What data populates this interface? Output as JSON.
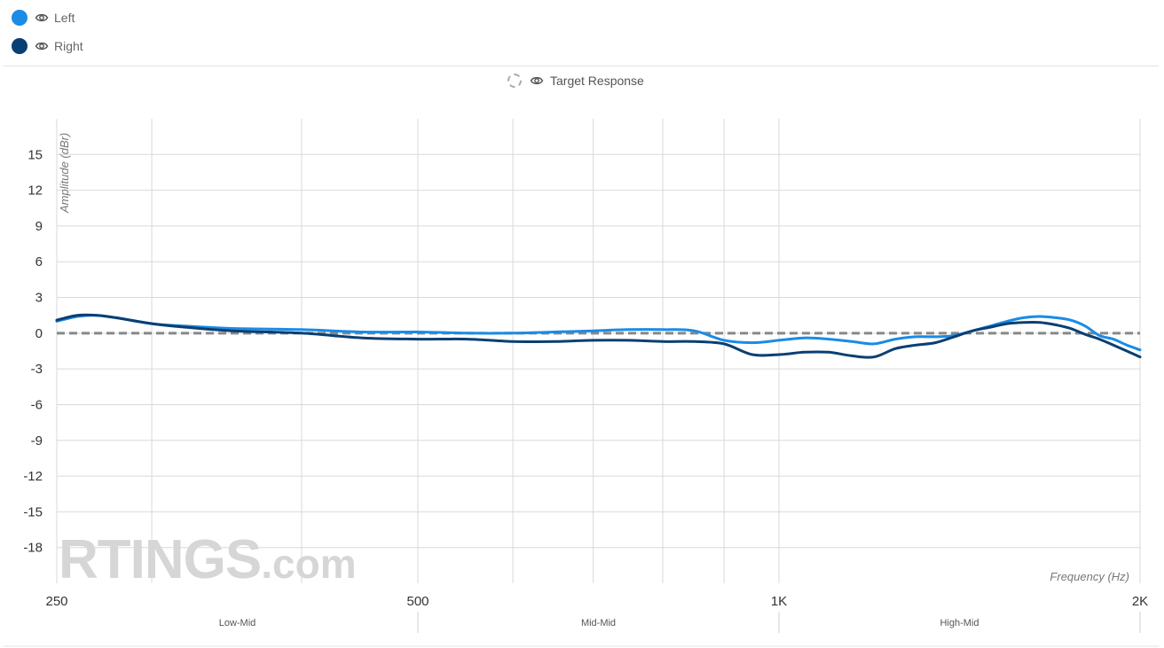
{
  "legend": {
    "items": [
      {
        "label": "Left",
        "color": "#1a8be6",
        "icon": "eye-icon"
      },
      {
        "label": "Right",
        "color": "#0a3f73",
        "icon": "eye-icon"
      }
    ],
    "target": {
      "label": "Target Response",
      "icon": "eye-icon"
    }
  },
  "watermark": {
    "brand": "RTINGS",
    "suffix": ".com"
  },
  "chart_data": {
    "type": "line",
    "xlabel": "Frequency (Hz)",
    "ylabel": "Amplitude (dBr)",
    "x_scale": "log",
    "xlim": [
      250,
      2000
    ],
    "ylim": [
      -21,
      18
    ],
    "x_ticks": [
      {
        "value": 250,
        "label": "250"
      },
      {
        "value": 500,
        "label": "500"
      },
      {
        "value": 1000,
        "label": "1K"
      },
      {
        "value": 2000,
        "label": "2K"
      }
    ],
    "x_minor": [
      300,
      400,
      600,
      700,
      800,
      900
    ],
    "y_ticks": [
      15,
      12,
      9,
      6,
      3,
      0,
      -3,
      -6,
      -9,
      -12,
      -15,
      -18
    ],
    "grid": true,
    "bands": [
      {
        "label": "Low-Mid",
        "from": 250,
        "to": 500
      },
      {
        "label": "Mid-Mid",
        "from": 500,
        "to": 1000
      },
      {
        "label": "High-Mid",
        "from": 1000,
        "to": 2000
      }
    ],
    "target": {
      "name": "Target Response",
      "value": 0,
      "color": "#888888"
    },
    "series": [
      {
        "name": "Left",
        "color": "#1a8be6",
        "x": [
          250,
          260,
          270,
          280,
          300,
          320,
          350,
          400,
          450,
          500,
          550,
          600,
          650,
          700,
          750,
          800,
          850,
          900,
          950,
          1000,
          1050,
          1100,
          1150,
          1200,
          1250,
          1300,
          1350,
          1400,
          1450,
          1500,
          1550,
          1600,
          1650,
          1700,
          1750,
          1800,
          1850,
          1900,
          1950,
          2000
        ],
        "y": [
          1.0,
          1.4,
          1.5,
          1.3,
          0.8,
          0.6,
          0.4,
          0.3,
          0.1,
          0.1,
          0.0,
          0.0,
          0.1,
          0.2,
          0.3,
          0.3,
          0.2,
          -0.6,
          -0.8,
          -0.6,
          -0.4,
          -0.5,
          -0.7,
          -0.9,
          -0.5,
          -0.3,
          -0.3,
          -0.2,
          0.2,
          0.6,
          1.0,
          1.3,
          1.4,
          1.3,
          1.1,
          0.6,
          -0.2,
          -0.5,
          -1.0,
          -1.4
        ]
      },
      {
        "name": "Right",
        "color": "#0a3f73",
        "x": [
          250,
          260,
          270,
          280,
          300,
          320,
          350,
          400,
          450,
          500,
          550,
          600,
          650,
          700,
          750,
          800,
          850,
          900,
          950,
          1000,
          1050,
          1100,
          1150,
          1200,
          1250,
          1300,
          1350,
          1400,
          1450,
          1500,
          1550,
          1600,
          1650,
          1700,
          1750,
          1800,
          1850,
          1900,
          1950,
          2000
        ],
        "y": [
          1.1,
          1.5,
          1.5,
          1.3,
          0.8,
          0.5,
          0.2,
          0.0,
          -0.4,
          -0.5,
          -0.5,
          -0.7,
          -0.7,
          -0.6,
          -0.6,
          -0.7,
          -0.7,
          -0.9,
          -1.8,
          -1.8,
          -1.6,
          -1.6,
          -1.9,
          -2.0,
          -1.3,
          -1.0,
          -0.8,
          -0.3,
          0.2,
          0.5,
          0.8,
          0.9,
          0.9,
          0.7,
          0.4,
          -0.1,
          -0.5,
          -1.0,
          -1.5,
          -2.0
        ]
      }
    ]
  }
}
